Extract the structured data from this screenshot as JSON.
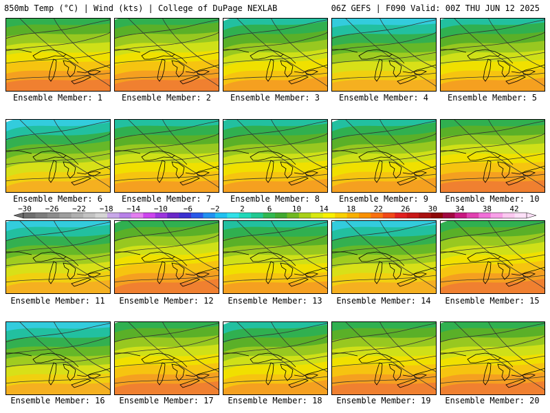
{
  "header": {
    "left": "850mb Temp (°C) | Wind (kts) | College of DuPage NEXLAB",
    "right": "06Z GEFS | F090 Valid: 00Z THU JUN 12 2025"
  },
  "colorbar": {
    "labels": [
      "−30",
      "−26",
      "−22",
      "−18",
      "−14",
      "−10",
      "−6",
      "−2",
      "2",
      "6",
      "10",
      "14",
      "18",
      "22",
      "26",
      "30",
      "34",
      "38",
      "42"
    ],
    "colors": [
      "#6e6e6e",
      "#7d7d7d",
      "#8c8c8c",
      "#9e9e9e",
      "#b0b0b0",
      "#c2c2c2",
      "#d4d4d4",
      "#c8a8e8",
      "#b882e8",
      "#e37ef0",
      "#cc44ee",
      "#9b34dd",
      "#6a28c8",
      "#3a30d0",
      "#2858e8",
      "#2090f0",
      "#20c0f0",
      "#30e0e8",
      "#20d8b8",
      "#20c890",
      "#30b850",
      "#40a830",
      "#70b820",
      "#a8d018",
      "#d8e810",
      "#f8f000",
      "#f8d000",
      "#f8b000",
      "#f89000",
      "#f87010",
      "#f04818",
      "#e02020",
      "#c81818",
      "#a81010",
      "#8c0808",
      "#a00840",
      "#c81880",
      "#e040b0",
      "#f070d8",
      "#f8a0e8",
      "#fbc8f0",
      "#fde0f8"
    ]
  },
  "members": [
    {
      "label": "Ensemble Member: 1",
      "palette": "warm"
    },
    {
      "label": "Ensemble Member: 2",
      "palette": "warm"
    },
    {
      "label": "Ensemble Member: 3",
      "palette": "mid"
    },
    {
      "label": "Ensemble Member: 4",
      "palette": "cool"
    },
    {
      "label": "Ensemble Member: 5",
      "palette": "mid"
    },
    {
      "label": "Ensemble Member: 6",
      "palette": "cool"
    },
    {
      "label": "Ensemble Member: 7",
      "palette": "mid"
    },
    {
      "label": "Ensemble Member: 8",
      "palette": "mid"
    },
    {
      "label": "Ensemble Member: 9",
      "palette": "mid"
    },
    {
      "label": "Ensemble Member: 10",
      "palette": "warm"
    },
    {
      "label": "Ensemble Member: 11",
      "palette": "cool"
    },
    {
      "label": "Ensemble Member: 12",
      "palette": "warm"
    },
    {
      "label": "Ensemble Member: 13",
      "palette": "mid"
    },
    {
      "label": "Ensemble Member: 14",
      "palette": "cool"
    },
    {
      "label": "Ensemble Member: 15",
      "palette": "warm"
    },
    {
      "label": "Ensemble Member: 16",
      "palette": "cool"
    },
    {
      "label": "Ensemble Member: 17",
      "palette": "warm"
    },
    {
      "label": "Ensemble Member: 18",
      "palette": "mid"
    },
    {
      "label": "Ensemble Member: 19",
      "palette": "warm"
    },
    {
      "label": "Ensemble Member: 20",
      "palette": "warm"
    }
  ],
  "palettes": {
    "cool": [
      "#33ccdd",
      "#22c0a0",
      "#33b050",
      "#66b828",
      "#a0cc20",
      "#d8e018",
      "#f0d010",
      "#f5b020"
    ],
    "mid": [
      "#22c0a0",
      "#30b050",
      "#5ab028",
      "#98c820",
      "#cfe018",
      "#f0e000",
      "#f6c410",
      "#f5a020"
    ],
    "warm": [
      "#30b050",
      "#5ab028",
      "#98c820",
      "#cfe018",
      "#f0e000",
      "#f6c410",
      "#f5a020",
      "#f08030"
    ]
  }
}
